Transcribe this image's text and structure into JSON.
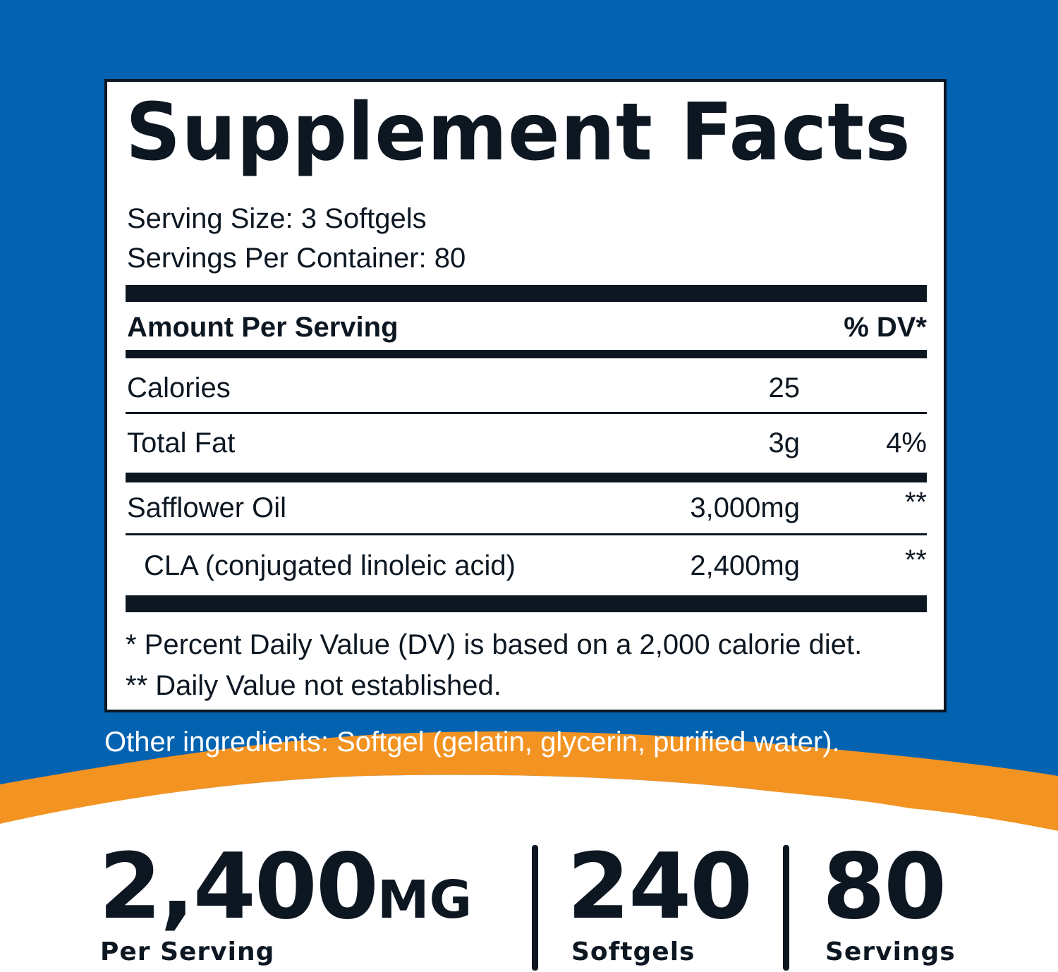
{
  "label": {
    "title": "Supplement Facts",
    "serving_size": "Serving Size: 3 Softgels",
    "servings_per_container": "Servings Per Container: 80",
    "header_amount": "Amount Per Serving",
    "header_dv": "% DV*",
    "rows": [
      {
        "name": "Calories",
        "amount": "25",
        "dv": ""
      },
      {
        "name": "Total Fat",
        "amount": "3g",
        "dv": "4%"
      },
      {
        "name": "Safflower Oil",
        "amount": "3,000mg",
        "dv": "**"
      },
      {
        "name": "CLA (conjugated linoleic acid)",
        "amount": "2,400mg",
        "dv": "**"
      }
    ],
    "footnote_1": "* Percent Daily Value (DV) is based on a 2,000 calorie diet.",
    "footnote_2": "** Daily Value not established."
  },
  "other_ingredients": "Other ingredients: Softgel (gelatin, glycerin, purified water).",
  "highlights": [
    {
      "value": "2,400",
      "unit": "MG",
      "caption": "Per Serving"
    },
    {
      "value": "240",
      "unit": "",
      "caption": "Softgels"
    },
    {
      "value": "80",
      "unit": "",
      "caption": "Servings"
    }
  ],
  "colors": {
    "blue": "#0463b1",
    "orange": "#f39322",
    "ink": "#0d1722"
  }
}
